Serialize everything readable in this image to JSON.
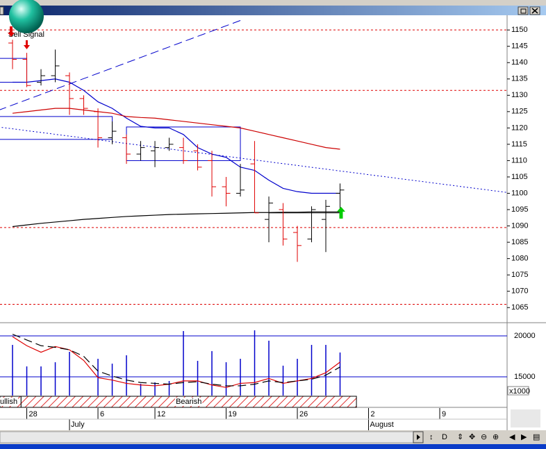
{
  "chart_data": [
    {
      "type": "ohlc",
      "annotation": "Sell Signal",
      "xlim": [
        -0.88,
        34.73
      ],
      "ylim": [
        1060.8,
        1154.5
      ],
      "yticks": [
        1065,
        1070,
        1075,
        1080,
        1085,
        1090,
        1095,
        1100,
        1105,
        1110,
        1115,
        1120,
        1125,
        1130,
        1135,
        1140,
        1145,
        1150
      ],
      "up_color": "#000000",
      "down_color": "#e00000",
      "ohlc": {
        "x": [
          0,
          1,
          2,
          3,
          4,
          5,
          6,
          7,
          8,
          9,
          10,
          11,
          12,
          13,
          14,
          15,
          16,
          17,
          18,
          19,
          20,
          21,
          22,
          23
        ],
        "open": [
          1146,
          1141,
          1134,
          1136,
          1136,
          1129,
          1125,
          1117,
          1117,
          1112,
          1113,
          1114,
          1114,
          1113,
          1110,
          1102,
          1100,
          1109,
          1092,
          1095,
          1088,
          1086,
          1092,
          1100
        ],
        "high": [
          1147,
          1143,
          1138,
          1144,
          1137,
          1130,
          1126,
          1122,
          1118,
          1116,
          1116,
          1117,
          1117,
          1115,
          1113,
          1105,
          1109,
          1116,
          1099,
          1097,
          1090,
          1096,
          1098,
          1103
        ],
        "low": [
          1138,
          1132.5,
          1133,
          1134,
          1124,
          1124,
          1114,
          1115,
          1109,
          1110,
          1108,
          1113,
          1109,
          1107,
          1099,
          1096,
          1099,
          1094,
          1085,
          1084,
          1079,
          1085,
          1082,
          1095
        ],
        "close": [
          1141,
          1133,
          1136,
          1139,
          1129,
          1126,
          1117,
          1119,
          1112,
          1114,
          1114,
          1115,
          1110,
          1108,
          1102,
          1100,
          1101,
          1094,
          1097,
          1086,
          1084,
          1095,
          1096,
          1101
        ]
      },
      "lines": [
        {
          "color": "#0000cc",
          "values": [
            1134,
            1134,
            1134.5,
            1135,
            1134,
            1131.5,
            1128,
            1126,
            1123,
            1120.5,
            1120,
            1120,
            1118,
            1114,
            1112,
            1111,
            1108,
            1107,
            1104,
            1101.5,
            1100.5,
            1100,
            1100,
            1100
          ]
        },
        {
          "color": "#cc0000",
          "values": [
            1124.5,
            1125,
            1125.5,
            1126,
            1126,
            1125.5,
            1125,
            1124.5,
            1123.5,
            1123.2,
            1123,
            1122.5,
            1122,
            1121.5,
            1121,
            1120.5,
            1120,
            1119,
            1118,
            1117,
            1116,
            1115,
            1114,
            1113.5
          ]
        },
        {
          "color": "#000000",
          "values": [
            1089.8,
            1090.3,
            1090.8,
            1091.2,
            1091.6,
            1092,
            1092.3,
            1092.6,
            1092.9,
            1093.1,
            1093.3,
            1093.5,
            1093.6,
            1093.7,
            1093.8,
            1093.9,
            1094,
            1094.1,
            1094.1,
            1094.2,
            1094.2,
            1094.3,
            1094.3,
            1094.3
          ]
        }
      ],
      "trendlines": [
        {
          "style": "dashed",
          "color": "#0000cc",
          "x": [
            -1,
            16
          ],
          "values": [
            1125.4,
            1152.9
          ]
        },
        {
          "style": "dotted",
          "color": "#0000cc",
          "x": [
            -1,
            35
          ],
          "values": [
            1120.3,
            1100.1
          ]
        },
        {
          "style": "solid",
          "color": "#000000",
          "x": [
            18,
            23
          ],
          "values": [
            1094,
            1094
          ]
        }
      ],
      "boxes": [
        {
          "color": "#0000cc",
          "x": [
            -1,
            7
          ],
          "y": [
            1116.5,
            1123.5
          ]
        },
        {
          "color": "#0000cc",
          "x": [
            8,
            16
          ],
          "y": [
            1110,
            1120.3
          ]
        },
        {
          "color": "#0000cc",
          "x": [
            -1,
            1
          ],
          "y": [
            1134,
            1141.3
          ]
        }
      ],
      "levels": {
        "color": "#dd0000",
        "values": [
          1150,
          1131.5,
          1089.5,
          1066
        ]
      }
    },
    {
      "type": "bar",
      "unit_label": "x1000",
      "xlim": [
        -0.88,
        34.73
      ],
      "ylim": [
        12710,
        21440
      ],
      "yticks": [
        15000,
        20000
      ],
      "color": "#0000cc",
      "x": [
        0,
        1,
        2,
        3,
        4,
        5,
        6,
        7,
        8,
        9,
        10,
        11,
        12,
        13,
        14,
        15,
        16,
        17,
        18,
        19,
        20,
        21,
        22,
        23
      ],
      "values": [
        18900,
        16270,
        16270,
        16780,
        18050,
        null,
        17200,
        16610,
        17630,
        14150,
        14320,
        14490,
        20590,
        16950,
        18140,
        16780,
        17200,
        20680,
        19410,
        16360,
        17200,
        18900,
        18900,
        17970
      ],
      "lines": [
        {
          "color": "#dd0000",
          "style": "solid",
          "values": [
            19900,
            18800,
            18000,
            18700,
            18300,
            17000,
            14900,
            14600,
            14200,
            14000,
            13900,
            14100,
            14500,
            14500,
            14000,
            13700,
            14200,
            14300,
            14800,
            14200,
            14500,
            14800,
            15500,
            16800
          ]
        },
        {
          "color": "#000000",
          "style": "dashed",
          "values": [
            20200,
            19500,
            18800,
            18600,
            18300,
            17500,
            15700,
            15100,
            14600,
            14300,
            14200,
            14100,
            14300,
            14400,
            14100,
            13900,
            13900,
            14100,
            14500,
            14300,
            14500,
            14700,
            15200,
            16200
          ]
        }
      ],
      "regimes": [
        {
          "label": "ullish",
          "x": [
            -0.88,
            0.6
          ]
        },
        {
          "label": "Bearish",
          "x": [
            0.6,
            24.15
          ]
        }
      ],
      "xticks": [
        {
          "value": 1,
          "label": "28"
        },
        {
          "value": 6,
          "label": "6"
        },
        {
          "value": 10,
          "label": "12"
        },
        {
          "value": 15,
          "label": "19"
        },
        {
          "value": 20,
          "label": "26"
        },
        {
          "value": 25,
          "label": "2"
        },
        {
          "value": 30,
          "label": "9"
        }
      ],
      "month_ticks": [
        {
          "value": 4,
          "label": "July"
        },
        {
          "value": 25,
          "label": "August"
        }
      ]
    }
  ]
}
